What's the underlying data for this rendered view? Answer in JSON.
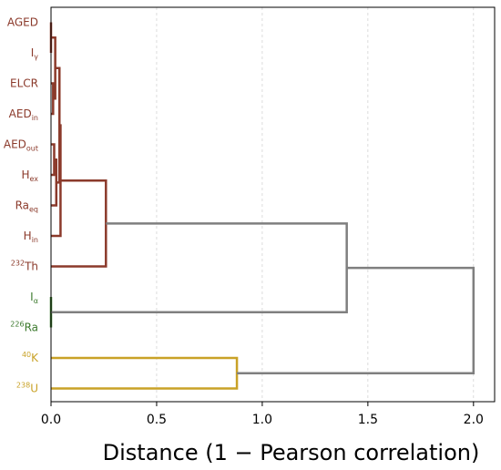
{
  "chart_data": {
    "type": "dendrogram",
    "orientation": "horizontal",
    "xlabel": "Distance (1 − Pearson correlation)",
    "xlim": [
      0,
      2.1
    ],
    "xticks": [
      0.0,
      0.5,
      1.0,
      1.5,
      2.0
    ],
    "xtick_labels": [
      "0.0",
      "0.5",
      "1.0",
      "1.5",
      "2.0"
    ],
    "grid": "vertical dashed",
    "colors": {
      "cluster_red": "#8b3a2b",
      "cluster_green": "#3d7a2e",
      "cluster_gold": "#c9a227",
      "above_threshold": "#7f7f7f"
    },
    "leaves": [
      {
        "id": "AGED",
        "main": "AGED",
        "sub": "",
        "sup": "",
        "cluster": "cluster_red"
      },
      {
        "id": "Ig",
        "main": "I",
        "sub": "γ",
        "sup": "",
        "cluster": "cluster_red"
      },
      {
        "id": "ELCR",
        "main": "ELCR",
        "sub": "",
        "sup": "",
        "cluster": "cluster_red"
      },
      {
        "id": "AEDin",
        "main": "AED",
        "sub": "in",
        "sup": "",
        "cluster": "cluster_red"
      },
      {
        "id": "AEDout",
        "main": "AED",
        "sub": "out",
        "sup": "",
        "cluster": "cluster_red"
      },
      {
        "id": "Hex",
        "main": "H",
        "sub": "ex",
        "sup": "",
        "cluster": "cluster_red"
      },
      {
        "id": "Raeq",
        "main": "Ra",
        "sub": "eq",
        "sup": "",
        "cluster": "cluster_red"
      },
      {
        "id": "Hin",
        "main": "H",
        "sub": "in",
        "sup": "",
        "cluster": "cluster_red"
      },
      {
        "id": "Th232",
        "main": "Th",
        "sub": "",
        "sup": "232",
        "cluster": "cluster_red"
      },
      {
        "id": "Ia",
        "main": "I",
        "sub": "α",
        "sup": "",
        "cluster": "cluster_green"
      },
      {
        "id": "Ra226",
        "main": "Ra",
        "sub": "",
        "sup": "226",
        "cluster": "cluster_green"
      },
      {
        "id": "K40",
        "main": "K",
        "sub": "",
        "sup": "40",
        "cluster": "cluster_gold"
      },
      {
        "id": "U238",
        "main": "U",
        "sub": "",
        "sup": "238",
        "cluster": "cluster_gold"
      }
    ],
    "merges": [
      {
        "a": "AGED",
        "b": "Ig",
        "distance": 0.0,
        "color": "cluster_red"
      },
      {
        "a": "ELCR",
        "b": "AEDin",
        "distance": 0.01,
        "color": "cluster_red"
      },
      {
        "a": "AGED+Ig",
        "b": "ELCR+AEDin",
        "distance": 0.02,
        "color": "cluster_red"
      },
      {
        "a": "AEDout",
        "b": "Hex",
        "distance": 0.015,
        "color": "cluster_red"
      },
      {
        "a": "AEDout+Hex",
        "b": "Raeq",
        "distance": 0.025,
        "color": "cluster_red"
      },
      {
        "a": "AGED+Ig+ELCR+AEDin",
        "b": "AEDout+Hex+Raeq",
        "distance": 0.04,
        "color": "cluster_red"
      },
      {
        "a": "prev",
        "b": "Hin",
        "distance": 0.045,
        "color": "cluster_red"
      },
      {
        "a": "prev",
        "b": "Th232",
        "distance": 0.26,
        "color": "cluster_red"
      },
      {
        "a": "Ia",
        "b": "Ra226",
        "distance": 0.0,
        "color": "cluster_green"
      },
      {
        "a": "red",
        "b": "green",
        "distance": 1.4,
        "color": "above_threshold"
      },
      {
        "a": "K40",
        "b": "U238",
        "distance": 0.88,
        "color": "cluster_gold"
      },
      {
        "a": "red+green",
        "b": "gold",
        "distance": 2.0,
        "color": "above_threshold"
      }
    ]
  }
}
